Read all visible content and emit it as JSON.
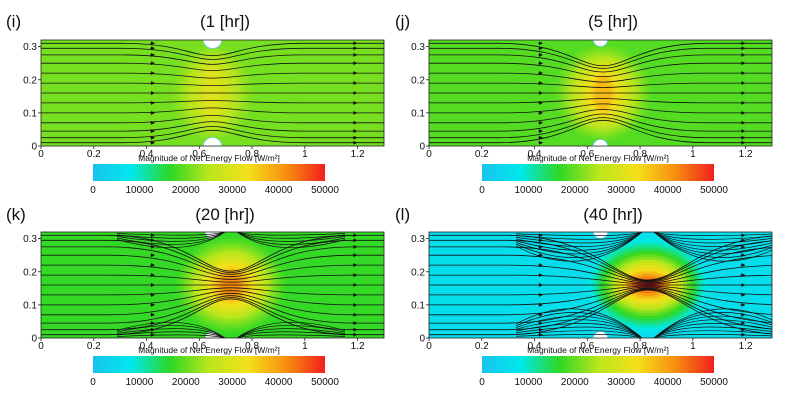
{
  "colormap": {
    "ticks": [
      "0",
      "10000",
      "20000",
      "30000",
      "40000",
      "50000"
    ],
    "stops": [
      "#19c3f0",
      "#00e8ea",
      "#2dd824",
      "#b9e61c",
      "#f4e01a",
      "#f78f10",
      "#f1201c"
    ]
  },
  "chart_data": [
    {
      "type": "heatmap",
      "panel_label": "(i)",
      "title": "(1 [hr])",
      "xlabel": "Magnitude of Net Energy Flow [W/m²]",
      "ylabel": "",
      "x_ticks": [
        "0",
        "0.2",
        "0.4",
        "0.6",
        "0.8",
        "1",
        "1.2"
      ],
      "y_ticks": [
        "0",
        "0.1",
        "0.2",
        "0.3"
      ],
      "xlim": [
        0,
        1.3
      ],
      "ylim": [
        0,
        0.32
      ],
      "colorbar": {
        "range": [
          0,
          50000
        ],
        "ticks": [
          0,
          10000,
          20000,
          30000,
          40000,
          50000
        ]
      },
      "background_value": 21000,
      "constriction_center_x": 0.65,
      "peak_value": 30000,
      "streamline_pattern": "parallel, converging slightly through the gap"
    },
    {
      "type": "heatmap",
      "panel_label": "(j)",
      "title": "(5 [hr])",
      "xlabel": "Magnitude of Net Energy Flow [W/m²]",
      "ylabel": "",
      "x_ticks": [
        "0",
        "0.2",
        "0.4",
        "0.6",
        "0.8",
        "1",
        "1.2"
      ],
      "y_ticks": [
        "0",
        "0.1",
        "0.2",
        "0.3"
      ],
      "xlim": [
        0,
        1.3
      ],
      "ylim": [
        0,
        0.32
      ],
      "colorbar": {
        "range": [
          0,
          50000
        ],
        "ticks": [
          0,
          10000,
          20000,
          30000,
          40000,
          50000
        ]
      },
      "background_value": 19000,
      "constriction_center_x": 0.66,
      "peak_value": 37000,
      "streamline_pattern": "converging through the gap"
    },
    {
      "type": "heatmap",
      "panel_label": "(k)",
      "title": "(20 [hr])",
      "xlabel": "Magnitude of Net Energy Flow [W/m²]",
      "ylabel": "",
      "x_ticks": [
        "0",
        "0.2",
        "0.4",
        "0.6",
        "0.8",
        "1",
        "1.2"
      ],
      "y_ticks": [
        "0",
        "0.1",
        "0.2",
        "0.3"
      ],
      "xlim": [
        0,
        1.3
      ],
      "ylim": [
        0,
        0.32
      ],
      "colorbar": {
        "range": [
          0,
          50000
        ],
        "ticks": [
          0,
          10000,
          20000,
          30000,
          40000,
          50000
        ]
      },
      "background_value": 17000,
      "constriction_center_x": 0.72,
      "peak_value": 42000,
      "streamline_pattern": "strongly converging hourglass, recirculation behind obstacles"
    },
    {
      "type": "heatmap",
      "panel_label": "(l)",
      "title": "(40 [hr])",
      "xlabel": "Magnitude of Net Energy Flow [W/m²]",
      "ylabel": "",
      "x_ticks": [
        "0",
        "0.2",
        "0.4",
        "0.6",
        "0.8",
        "1",
        "1.2"
      ],
      "y_ticks": [
        "0",
        "0.1",
        "0.2",
        "0.3"
      ],
      "xlim": [
        0,
        1.3
      ],
      "ylim": [
        0,
        0.32
      ],
      "colorbar": {
        "range": [
          0,
          50000
        ],
        "ticks": [
          0,
          10000,
          20000,
          30000,
          40000,
          50000
        ]
      },
      "background_value": 6000,
      "constriction_center_x": 0.83,
      "peak_value": 50000,
      "streamline_pattern": "narrow crossing jet at the center, large curved recirculation zones"
    }
  ]
}
